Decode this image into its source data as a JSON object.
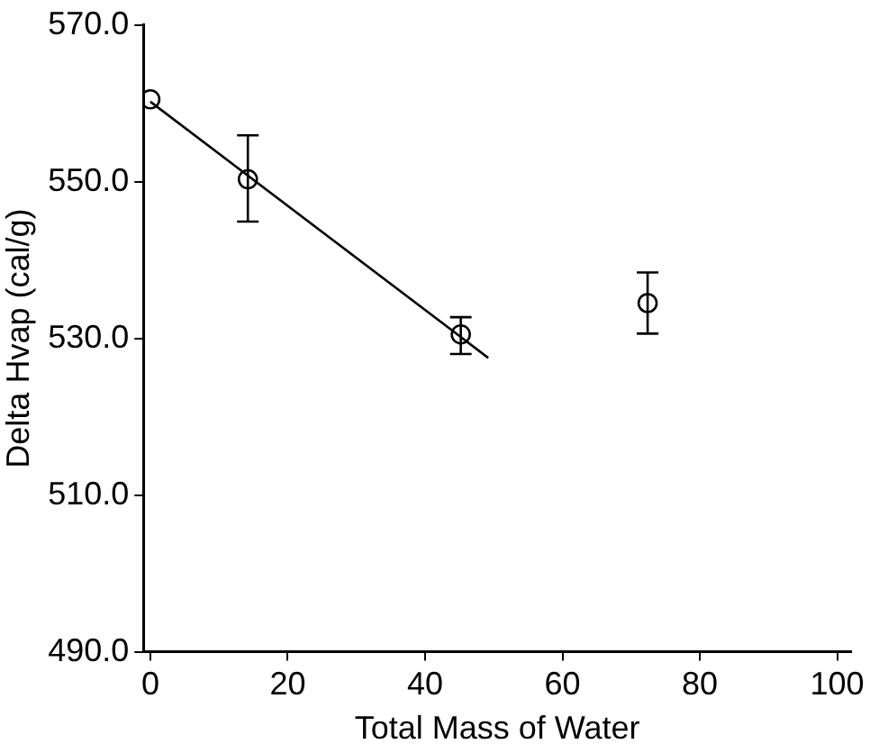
{
  "chart_data": {
    "type": "scatter",
    "xlabel": "Total Mass of Water",
    "ylabel": "Delta Hvap (cal/g)",
    "series": [
      {
        "type": "scatter",
        "color": "#000000",
        "x": [
          0,
          14.2,
          45.2,
          72.4
        ],
        "values": [
          560.5,
          550.3,
          530.5,
          534.5
        ],
        "errors": [
          null,
          [
            544.9,
            555.9
          ],
          [
            528.0,
            532.7
          ],
          [
            530.6,
            538.4
          ]
        ],
        "marker": "circle"
      },
      {
        "type": "line",
        "color": "#000000",
        "x": [
          0,
          49.2
        ],
        "values": [
          560.2,
          527.5
        ],
        "marker": "none",
        "line_style": "solid"
      }
    ],
    "xlim": [
      -1,
      102
    ],
    "xticks": [
      0,
      20,
      40,
      60,
      80,
      100
    ],
    "ylim": [
      490,
      570
    ],
    "yticks": [
      {
        "value": 490,
        "label": "490.0"
      },
      {
        "value": 510,
        "label": "510.0"
      },
      {
        "value": 530,
        "label": "530.0"
      },
      {
        "value": 550,
        "label": "550.0"
      },
      {
        "value": 570,
        "label": "570.0"
      }
    ],
    "grid": false,
    "legend": false
  }
}
